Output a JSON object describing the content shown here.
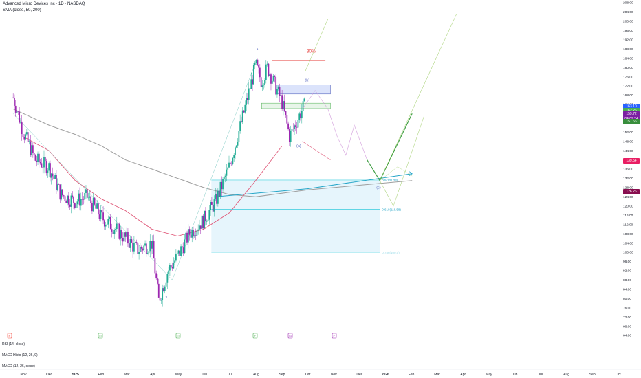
{
  "header": {
    "title": "Advanced Micro Devices Inc · 1D · NASDAQ",
    "sma_label": "SMA (close, 50, 200)"
  },
  "indicators": {
    "rsi": "RSI (14, close)",
    "macd_histo": "MACD Histo (12, 26, 9)",
    "macd": "MACD (12, 26, close)"
  },
  "colors": {
    "up": "#22ab94",
    "down": "#9c27b0",
    "sma50": "#e05a7a",
    "sma200": "#9e9e9e",
    "projection": "#8bc34a",
    "main_path": "#43a047",
    "target_line": "#e53935",
    "fib_zone": "#e0f2fb",
    "zone_box": "#dbe3fb"
  },
  "annotations": {
    "target_pct": "30%",
    "wave_b": "(b)",
    "wave_a": "(a)",
    "wave_c": "(c)",
    "wave_3": "3",
    "wave_1": "1"
  },
  "fib_levels": {
    "level_0618": "0.618(118.58)",
    "level_0786": "0.786(100.0)",
    "level_05": "0.5(131.23)"
  },
  "price_labels": [
    {
      "text": "163.10",
      "color": "#2962ff",
      "price": 163.1
    },
    {
      "text": "162.26",
      "color": "#4caf50",
      "price": 161.2
    },
    {
      "text": "159.72",
      "color": "#7b1fa2",
      "price": 159.72
    },
    {
      "text": "04:09:24",
      "color": "#7b1fa2",
      "price": 157.7
    },
    {
      "text": "157.66",
      "color": "#388e3c",
      "price": 156.4
    },
    {
      "text": "139.54",
      "color": "#e91e63",
      "price": 139.54
    },
    {
      "text": "126.26",
      "color": "#880e4f",
      "price": 126.26
    }
  ],
  "event_markers": [
    {
      "label": "E",
      "color": "#f44336"
    },
    {
      "label": "D",
      "color": "#4caf50"
    },
    {
      "label": "D",
      "color": "#4caf50"
    },
    {
      "label": "E",
      "color": "#4caf50"
    },
    {
      "label": "◷",
      "color": "#9c27b0"
    },
    {
      "label": "E",
      "color": "#9c27b0"
    }
  ],
  "chart_data": {
    "type": "candlestick",
    "title": "Advanced Micro Devices Inc · 1D · NASDAQ",
    "ylim": [
      64,
      208
    ],
    "y_ticks": [
      "208.00",
      "204.00",
      "200.00",
      "196.00",
      "192.00",
      "188.00",
      "184.00",
      "180.00",
      "176.00",
      "172.00",
      "168.00",
      "164.00",
      "160.00",
      "156.00",
      "152.00",
      "148.00",
      "144.00",
      "140.00",
      "136.00",
      "132.00",
      "128.00",
      "124.00",
      "120.00",
      "116.00",
      "112.00",
      "108.00",
      "104.00",
      "100.00",
      "96.00",
      "92.00",
      "88.00",
      "84.00",
      "80.00",
      "76.00",
      "72.00",
      "68.00",
      "64.00"
    ],
    "x_ticks": [
      "Nov",
      "Dec",
      "2025",
      "Feb",
      "Mar",
      "Apr",
      "May",
      "Jun",
      "Jul",
      "Aug",
      "Sep",
      "Oct",
      "Nov",
      "Dec",
      "2026",
      "Feb",
      "Mar",
      "Apr",
      "May",
      "Jun",
      "Jul",
      "Aug",
      "Sep",
      "Oct"
    ],
    "price_path": [
      [
        "2024-10-20",
        167
      ],
      [
        "2024-11-01",
        152
      ],
      [
        "2024-11-15",
        140
      ],
      [
        "2024-12-01",
        137
      ],
      [
        "2024-12-15",
        125
      ],
      [
        "2025-01-01",
        122
      ],
      [
        "2025-01-15",
        124
      ],
      [
        "2025-02-01",
        115
      ],
      [
        "2025-02-15",
        111
      ],
      [
        "2025-03-01",
        106
      ],
      [
        "2025-03-15",
        101
      ],
      [
        "2025-04-01",
        104
      ],
      [
        "2025-04-09",
        79
      ],
      [
        "2025-04-20",
        92
      ],
      [
        "2025-05-01",
        98
      ],
      [
        "2025-05-15",
        108
      ],
      [
        "2025-06-01",
        114
      ],
      [
        "2025-06-15",
        122
      ],
      [
        "2025-07-01",
        137
      ],
      [
        "2025-07-15",
        156
      ],
      [
        "2025-08-01",
        181
      ],
      [
        "2025-08-08",
        174
      ],
      [
        "2025-08-15",
        180
      ],
      [
        "2025-09-01",
        165
      ],
      [
        "2025-09-10",
        150
      ],
      [
        "2025-09-25",
        162
      ],
      [
        "2025-10-10",
        170
      ],
      [
        "2025-10-25",
        162
      ],
      [
        "2025-11-05",
        150
      ],
      [
        "2025-11-15",
        142
      ],
      [
        "2025-11-25",
        155
      ],
      [
        "2025-12-10",
        140
      ]
    ],
    "sma50": [
      [
        "2024-11-01",
        150
      ],
      [
        "2024-12-01",
        144
      ],
      [
        "2025-01-01",
        131
      ],
      [
        "2025-02-01",
        123
      ],
      [
        "2025-03-01",
        118
      ],
      [
        "2025-04-01",
        110
      ],
      [
        "2025-05-01",
        107
      ],
      [
        "2025-06-01",
        110
      ],
      [
        "2025-07-01",
        117
      ],
      [
        "2025-08-01",
        131
      ],
      [
        "2025-09-01",
        146
      ]
    ],
    "sma200": [
      [
        "2024-10-20",
        162
      ],
      [
        "2024-12-01",
        155
      ],
      [
        "2025-01-01",
        151
      ],
      [
        "2025-02-01",
        146
      ],
      [
        "2025-03-01",
        140
      ],
      [
        "2025-04-01",
        136
      ],
      [
        "2025-05-01",
        132
      ],
      [
        "2025-06-01",
        128
      ],
      [
        "2025-07-01",
        125
      ],
      [
        "2025-08-01",
        124
      ],
      [
        "2025-10-01",
        127
      ],
      [
        "2025-12-01",
        129
      ],
      [
        "2026-02-01",
        131
      ]
    ],
    "series": [
      {
        "values": [
          [
            "2025-12-10",
            140
          ],
          [
            "2025-12-25",
            131
          ],
          [
            "2026-02-01",
            160
          ]
        ]
      },
      {
        "values": [
          [
            "2025-09-01",
            164
          ],
          [
            "2025-09-20",
            178
          ],
          [
            "2025-10-25",
            162
          ],
          [
            "2025-11-15",
            144
          ],
          [
            "2025-12-25",
            131
          ]
        ]
      }
    ],
    "target_level": 183,
    "fib_zone": [
      100,
      131
    ],
    "fib_levels": [
      131.23,
      118.58,
      100.0
    ]
  }
}
